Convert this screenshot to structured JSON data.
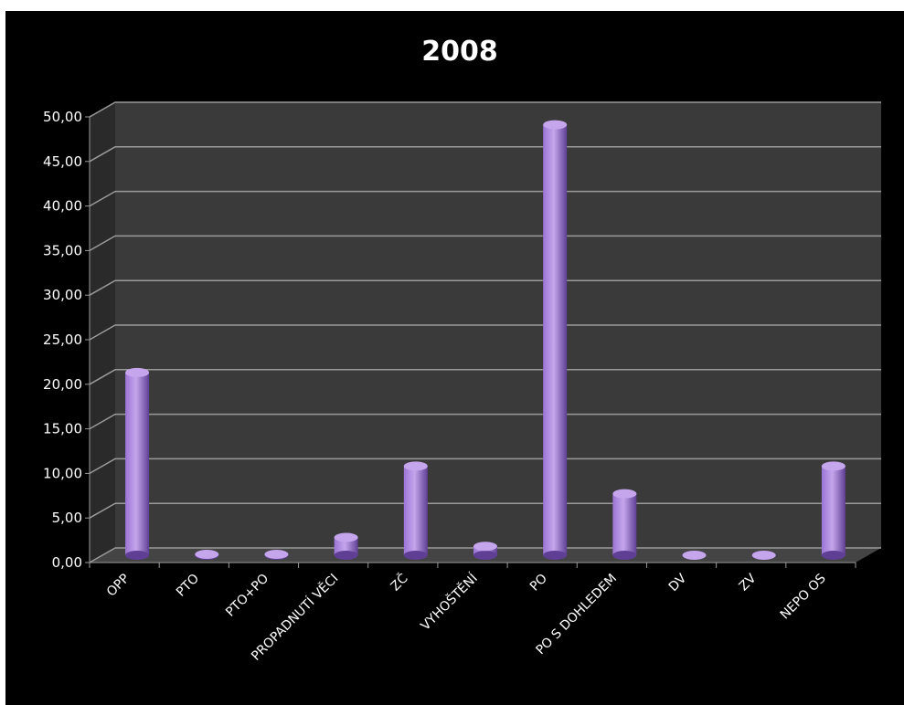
{
  "chart_data": {
    "type": "bar",
    "title": "2008",
    "categories": [
      "OPP",
      "PTO",
      "PTO+PO",
      "PROPADNUTÍ VĚCI",
      "ZČ",
      "VYHOŠTĚNÍ",
      "PO",
      "PO S DOHLEDEM",
      "DV",
      "ZV",
      "NEPO OS"
    ],
    "values": [
      20.5,
      0.1,
      0.1,
      2.0,
      10.0,
      1.0,
      48.3,
      6.9,
      0.0,
      0.0,
      10.0
    ],
    "y_ticks": [
      "0,00",
      "5,00",
      "10,00",
      "15,00",
      "20,00",
      "25,00",
      "30,00",
      "35,00",
      "40,00",
      "45,00",
      "50,00"
    ],
    "ylim": [
      0,
      50
    ],
    "grid": true,
    "colors": {
      "background": "#000000",
      "plot_back": "#3a3a3a",
      "plot_side": "#2a2a2a",
      "floor": "#444444",
      "grid": "#9a9a9a",
      "bar_light": "#c5a6ec",
      "bar_mid": "#9a74d4",
      "bar_dark": "#5e3f94",
      "text": "#ffffff"
    }
  }
}
